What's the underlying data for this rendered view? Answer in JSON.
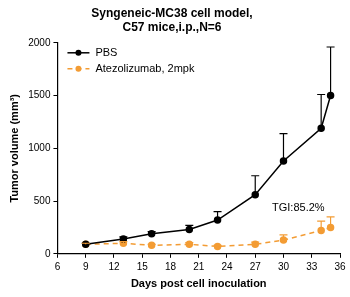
{
  "chart_data": {
    "type": "line",
    "title": [
      "Syngeneic-MC38 cell model,",
      "C57 mice,i.p.,N=6"
    ],
    "x_label": "Days post cell inoculation",
    "y_label": "Tumor volume (mm³)",
    "xlim": [
      6,
      36
    ],
    "xticks": [
      6,
      9,
      12,
      15,
      18,
      21,
      24,
      27,
      30,
      33,
      36
    ],
    "ylim": [
      0,
      2000
    ],
    "yticks": [
      0,
      500,
      1000,
      1500,
      2000
    ],
    "grid": false,
    "legend": "upper left",
    "annotations": [
      "TGI:85.2%"
    ],
    "series": [
      {
        "name": "PBS",
        "color": "#000000",
        "marker": "circle",
        "line_style": "solid",
        "x": [
          9,
          13,
          16,
          20,
          23,
          27,
          30,
          34,
          35
        ],
        "values": [
          90,
          140,
          190,
          230,
          320,
          560,
          880,
          1190,
          1500
        ],
        "errors": [
          10,
          20,
          20,
          40,
          80,
          180,
          260,
          320,
          460
        ]
      },
      {
        "name": "Atezolizumab, 2mpk",
        "color": "#f39c34",
        "marker": "circle",
        "line_style": "dashed",
        "x": [
          9,
          13,
          16,
          20,
          23,
          27,
          30,
          34,
          35
        ],
        "values": [
          90,
          100,
          80,
          90,
          70,
          90,
          130,
          220,
          250
        ],
        "errors": [
          10,
          15,
          10,
          15,
          10,
          20,
          50,
          90,
          100
        ]
      }
    ]
  }
}
